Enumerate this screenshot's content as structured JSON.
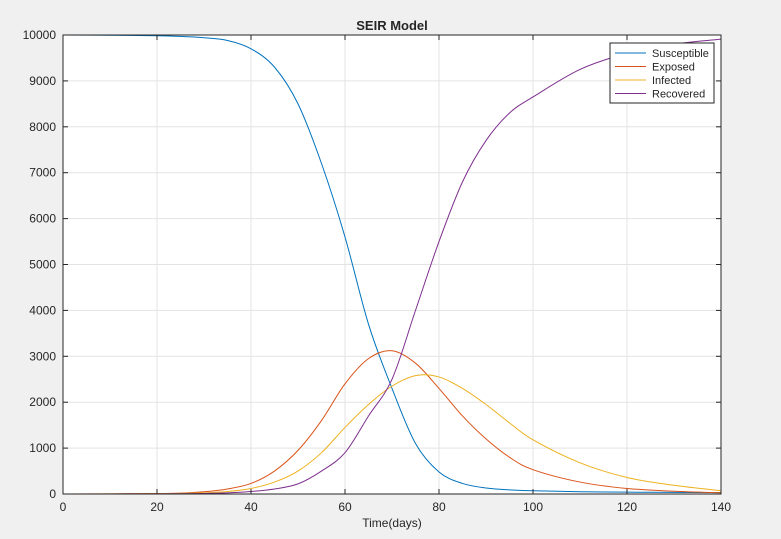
{
  "chart_data": {
    "type": "line",
    "title": "SEIR Model",
    "xlabel": "Time(days)",
    "ylabel": "",
    "xlim": [
      0,
      140
    ],
    "ylim": [
      0,
      10000
    ],
    "xticks": [
      0,
      20,
      40,
      60,
      80,
      100,
      120,
      140
    ],
    "yticks": [
      0,
      1000,
      2000,
      3000,
      4000,
      5000,
      6000,
      7000,
      8000,
      9000,
      10000
    ],
    "grid": true,
    "legend_position": "top-right",
    "x": [
      0,
      10,
      20,
      25,
      30,
      35,
      40,
      45,
      50,
      55,
      60,
      65,
      70,
      75,
      80,
      85,
      90,
      95,
      100,
      110,
      120,
      130,
      140
    ],
    "series": [
      {
        "name": "Susceptible",
        "color": "#0072BD",
        "values": [
          9999,
          9995,
          9985,
          9970,
          9940,
          9880,
          9700,
          9300,
          8500,
          7200,
          5600,
          3700,
          2300,
          1100,
          480,
          230,
          130,
          90,
          70,
          50,
          40,
          35,
          30
        ]
      },
      {
        "name": "Exposed",
        "color": "#D95319",
        "values": [
          1,
          4,
          10,
          20,
          50,
          110,
          230,
          500,
          950,
          1600,
          2400,
          2950,
          3120,
          2850,
          2300,
          1700,
          1200,
          800,
          530,
          260,
          120,
          60,
          25
        ]
      },
      {
        "name": "Infected",
        "color": "#EDB120",
        "values": [
          0,
          2,
          6,
          12,
          25,
          55,
          120,
          260,
          500,
          900,
          1450,
          1950,
          2350,
          2580,
          2550,
          2300,
          1950,
          1550,
          1180,
          680,
          360,
          190,
          70
        ]
      },
      {
        "name": "Recovered",
        "color": "#7E2F8E",
        "values": [
          0,
          1,
          3,
          6,
          12,
          25,
          55,
          110,
          220,
          500,
          900,
          1700,
          2500,
          4000,
          5500,
          6800,
          7700,
          8300,
          8650,
          9250,
          9600,
          9800,
          9910
        ]
      }
    ]
  }
}
